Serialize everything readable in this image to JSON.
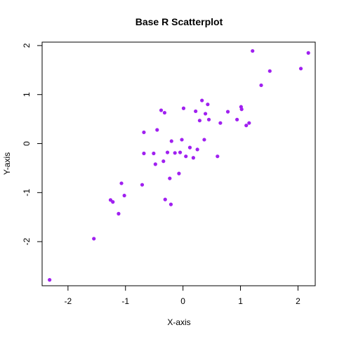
{
  "chart_data": {
    "type": "scatter",
    "title": "Base R Scatterplot",
    "xlabel": "X-axis",
    "ylabel": "Y-axis",
    "xlim": [
      -2.45,
      2.3
    ],
    "ylim": [
      -2.9,
      2.07
    ],
    "xticks": [
      -2,
      -1,
      0,
      1,
      2
    ],
    "yticks": [
      -2,
      -1,
      0,
      1,
      2
    ],
    "grid": false,
    "point_color": "#A020F0",
    "points": [
      {
        "x": -2.32,
        "y": -2.78
      },
      {
        "x": -1.55,
        "y": -1.94
      },
      {
        "x": -1.26,
        "y": -1.15
      },
      {
        "x": -1.22,
        "y": -1.19
      },
      {
        "x": -1.12,
        "y": -1.43
      },
      {
        "x": -1.07,
        "y": -0.81
      },
      {
        "x": -1.02,
        "y": -1.06
      },
      {
        "x": -0.71,
        "y": -0.84
      },
      {
        "x": -0.68,
        "y": 0.23
      },
      {
        "x": -0.68,
        "y": -0.2
      },
      {
        "x": -0.51,
        "y": -0.2
      },
      {
        "x": -0.48,
        "y": -0.42
      },
      {
        "x": -0.45,
        "y": 0.28
      },
      {
        "x": -0.38,
        "y": 0.68
      },
      {
        "x": -0.34,
        "y": -0.36
      },
      {
        "x": -0.32,
        "y": 0.63
      },
      {
        "x": -0.31,
        "y": -1.14
      },
      {
        "x": -0.27,
        "y": -0.18
      },
      {
        "x": -0.23,
        "y": -0.71
      },
      {
        "x": -0.21,
        "y": -1.24
      },
      {
        "x": -0.2,
        "y": 0.05
      },
      {
        "x": -0.14,
        "y": -0.19
      },
      {
        "x": -0.07,
        "y": -0.61
      },
      {
        "x": -0.05,
        "y": -0.18
      },
      {
        "x": -0.02,
        "y": 0.08
      },
      {
        "x": 0.01,
        "y": 0.72
      },
      {
        "x": 0.05,
        "y": -0.26
      },
      {
        "x": 0.12,
        "y": -0.08
      },
      {
        "x": 0.18,
        "y": -0.29
      },
      {
        "x": 0.22,
        "y": 0.66
      },
      {
        "x": 0.25,
        "y": -0.12
      },
      {
        "x": 0.29,
        "y": 0.47
      },
      {
        "x": 0.33,
        "y": 0.88
      },
      {
        "x": 0.37,
        "y": 0.08
      },
      {
        "x": 0.39,
        "y": 0.61
      },
      {
        "x": 0.43,
        "y": 0.8
      },
      {
        "x": 0.45,
        "y": 0.49
      },
      {
        "x": 0.6,
        "y": -0.26
      },
      {
        "x": 0.65,
        "y": 0.42
      },
      {
        "x": 0.78,
        "y": 0.65
      },
      {
        "x": 0.94,
        "y": 0.49
      },
      {
        "x": 1.01,
        "y": 0.75
      },
      {
        "x": 1.02,
        "y": 0.7
      },
      {
        "x": 1.1,
        "y": 0.37
      },
      {
        "x": 1.15,
        "y": 0.42
      },
      {
        "x": 1.21,
        "y": 1.89
      },
      {
        "x": 1.36,
        "y": 1.19
      },
      {
        "x": 1.51,
        "y": 1.48
      },
      {
        "x": 2.05,
        "y": 1.53
      },
      {
        "x": 2.18,
        "y": 1.85
      }
    ]
  }
}
